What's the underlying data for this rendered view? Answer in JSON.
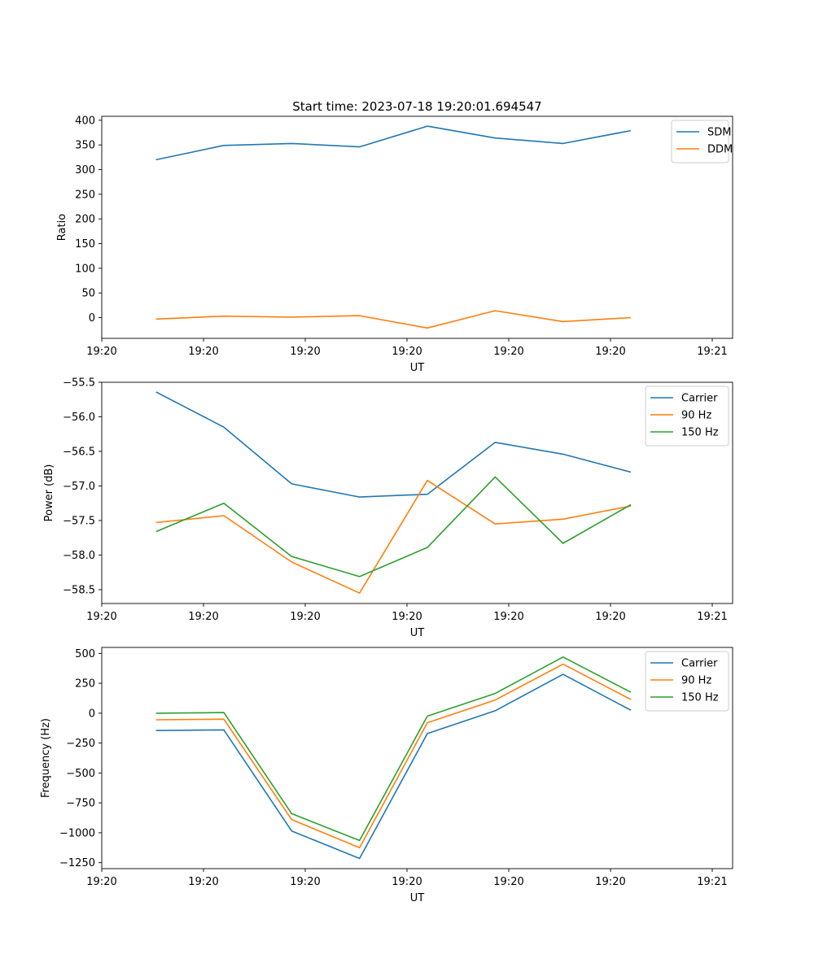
{
  "figure_title": "Start time: 2023-07-18 19:20:01.694547",
  "chart_data": [
    {
      "type": "line",
      "xlabel": "UT",
      "ylabel": "Ratio",
      "xlim": [
        0,
        9.3
      ],
      "ylim": [
        -42,
        408
      ],
      "x": [
        0.8,
        1.8,
        2.8,
        3.8,
        4.8,
        5.8,
        6.8,
        7.8
      ],
      "xticks": [
        0,
        1.5,
        3,
        4.5,
        6,
        7.5,
        9
      ],
      "xtick_labels": [
        "19:20",
        "19:20",
        "19:20",
        "19:20",
        "19:20",
        "19:20",
        "19:21"
      ],
      "yticks": [
        0,
        50,
        100,
        150,
        200,
        250,
        300,
        350,
        400
      ],
      "ytick_labels": [
        "0",
        "50",
        "100",
        "150",
        "200",
        "250",
        "300",
        "350",
        "400"
      ],
      "legend_position": "upper-right",
      "series": [
        {
          "name": "SDM",
          "color": "#1f77b4",
          "values": [
            320,
            349,
            353,
            346,
            388,
            364,
            353,
            379
          ]
        },
        {
          "name": "DDM",
          "color": "#ff7f0e",
          "values": [
            -3,
            3,
            1,
            4,
            -21,
            14,
            -8,
            0
          ]
        }
      ]
    },
    {
      "type": "line",
      "xlabel": "UT",
      "ylabel": "Power (dB)",
      "xlim": [
        0,
        9.3
      ],
      "ylim": [
        -58.7,
        -55.5
      ],
      "x": [
        0.8,
        1.8,
        2.8,
        3.8,
        4.8,
        5.8,
        6.8,
        7.8
      ],
      "xticks": [
        0,
        1.5,
        3,
        4.5,
        6,
        7.5,
        9
      ],
      "xtick_labels": [
        "19:20",
        "19:20",
        "19:20",
        "19:20",
        "19:20",
        "19:20",
        "19:21"
      ],
      "yticks": [
        -55.5,
        -56.0,
        -56.5,
        -57.0,
        -57.5,
        -58.0,
        -58.5
      ],
      "ytick_labels": [
        "−55.5",
        "−56.0",
        "−56.5",
        "−57.0",
        "−57.5",
        "−58.0",
        "−58.5"
      ],
      "legend_position": "upper-right",
      "series": [
        {
          "name": "Carrier",
          "color": "#1f77b4",
          "values": [
            -55.64,
            -56.15,
            -56.97,
            -57.16,
            -57.12,
            -56.37,
            -56.54,
            -56.8
          ]
        },
        {
          "name": "90 Hz",
          "color": "#ff7f0e",
          "values": [
            -57.53,
            -57.43,
            -58.1,
            -58.55,
            -56.92,
            -57.55,
            -57.48,
            -57.29
          ]
        },
        {
          "name": "150 Hz",
          "color": "#2ca02c",
          "values": [
            -57.66,
            -57.25,
            -58.02,
            -58.31,
            -57.89,
            -56.87,
            -57.83,
            -57.27
          ]
        }
      ]
    },
    {
      "type": "line",
      "xlabel": "UT",
      "ylabel": "Frequency (Hz)",
      "xlim": [
        0,
        9.3
      ],
      "ylim": [
        -1300,
        550
      ],
      "x": [
        0.8,
        1.8,
        2.8,
        3.8,
        4.8,
        5.8,
        6.8,
        7.8
      ],
      "xticks": [
        0,
        1.5,
        3,
        4.5,
        6,
        7.5,
        9
      ],
      "xtick_labels": [
        "19:20",
        "19:20",
        "19:20",
        "19:20",
        "19:20",
        "19:20",
        "19:21"
      ],
      "yticks": [
        500,
        250,
        0,
        -250,
        -500,
        -750,
        -1000,
        -1250
      ],
      "ytick_labels": [
        "500",
        "250",
        "0",
        "−250",
        "−500",
        "−750",
        "−1000",
        "−1250"
      ],
      "legend_position": "upper-right",
      "series": [
        {
          "name": "Carrier",
          "color": "#1f77b4",
          "values": [
            -145,
            -140,
            -985,
            -1215,
            -170,
            20,
            325,
            25
          ]
        },
        {
          "name": "90 Hz",
          "color": "#ff7f0e",
          "values": [
            -55,
            -50,
            -890,
            -1125,
            -80,
            110,
            410,
            115
          ]
        },
        {
          "name": "150 Hz",
          "color": "#2ca02c",
          "values": [
            0,
            5,
            -840,
            -1065,
            -25,
            165,
            470,
            175
          ]
        }
      ]
    }
  ]
}
